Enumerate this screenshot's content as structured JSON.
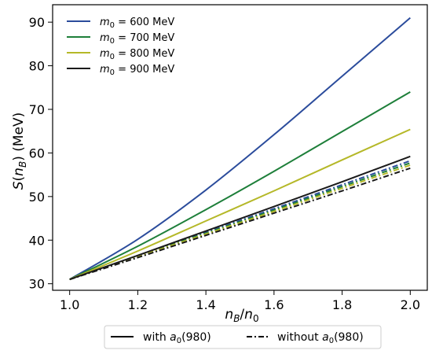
{
  "chart_data": {
    "type": "line",
    "xlabel": "n_B/n_0",
    "ylabel": "S(n_B) (MeV)",
    "xlim": [
      0.95,
      2.05
    ],
    "ylim": [
      28.5,
      94
    ],
    "xticks": [
      1.0,
      1.2,
      1.4,
      1.6,
      1.8,
      2.0
    ],
    "yticks": [
      30,
      40,
      50,
      60,
      70,
      80,
      90
    ],
    "xtick_labels": [
      "1.0",
      "1.2",
      "1.4",
      "1.6",
      "1.8",
      "2.0"
    ],
    "ytick_labels": [
      "30",
      "40",
      "50",
      "60",
      "70",
      "80",
      "90"
    ],
    "grid": false,
    "legend": {
      "placement": "top-left",
      "entries": [
        {
          "label": "m_0 = 600 MeV",
          "color": "#2b4c9c"
        },
        {
          "label": "m_0 = 700 MeV",
          "color": "#1e7f3a"
        },
        {
          "label": "m_0 = 800 MeV",
          "color": "#b5b828"
        },
        {
          "label": "m_0 = 900 MeV",
          "color": "#1a1a1a"
        }
      ]
    },
    "style_legend": {
      "placement": "bottom-center",
      "entries": [
        {
          "label": "with a_0(980)",
          "style": "solid"
        },
        {
          "label": "without a_0(980)",
          "style": "dashdot"
        }
      ]
    },
    "x": [
      1.0,
      1.2,
      1.4,
      1.6,
      1.8,
      2.0
    ],
    "series": [
      {
        "name": "m_0 = 600 MeV, with a_0(980)",
        "color": "#2b4c9c",
        "style": "solid",
        "values": [
          31.0,
          40.2,
          51.5,
          64.2,
          77.6,
          91.0
        ]
      },
      {
        "name": "m_0 = 700 MeV, with a_0(980)",
        "color": "#1e7f3a",
        "style": "solid",
        "values": [
          31.0,
          38.6,
          47.0,
          55.8,
          64.9,
          74.0
        ]
      },
      {
        "name": "m_0 = 800 MeV, with a_0(980)",
        "color": "#b5b828",
        "style": "solid",
        "values": [
          31.0,
          37.5,
          44.4,
          51.3,
          58.4,
          65.4
        ]
      },
      {
        "name": "m_0 = 900 MeV, with a_0(980)",
        "color": "#1a1a1a",
        "style": "solid",
        "values": [
          31.0,
          36.5,
          42.1,
          47.7,
          53.4,
          59.2
        ]
      },
      {
        "name": "m_0 = 600 MeV, without a_0(980)",
        "color": "#2b4c9c",
        "style": "dashdot",
        "values": [
          31.0,
          36.4,
          41.8,
          47.2,
          52.7,
          58.2
        ]
      },
      {
        "name": "m_0 = 700 MeV, without a_0(980)",
        "color": "#1e7f3a",
        "style": "dashdot",
        "values": [
          31.0,
          36.3,
          41.6,
          46.9,
          52.3,
          57.7
        ]
      },
      {
        "name": "m_0 = 800 MeV, without a_0(980)",
        "color": "#b5b828",
        "style": "dashdot",
        "values": [
          31.0,
          36.2,
          41.4,
          46.6,
          51.9,
          57.2
        ]
      },
      {
        "name": "m_0 = 900 MeV, without a_0(980)",
        "color": "#1a1a1a",
        "style": "dashdot",
        "values": [
          31.0,
          36.0,
          41.1,
          46.2,
          51.3,
          56.5
        ]
      }
    ]
  }
}
